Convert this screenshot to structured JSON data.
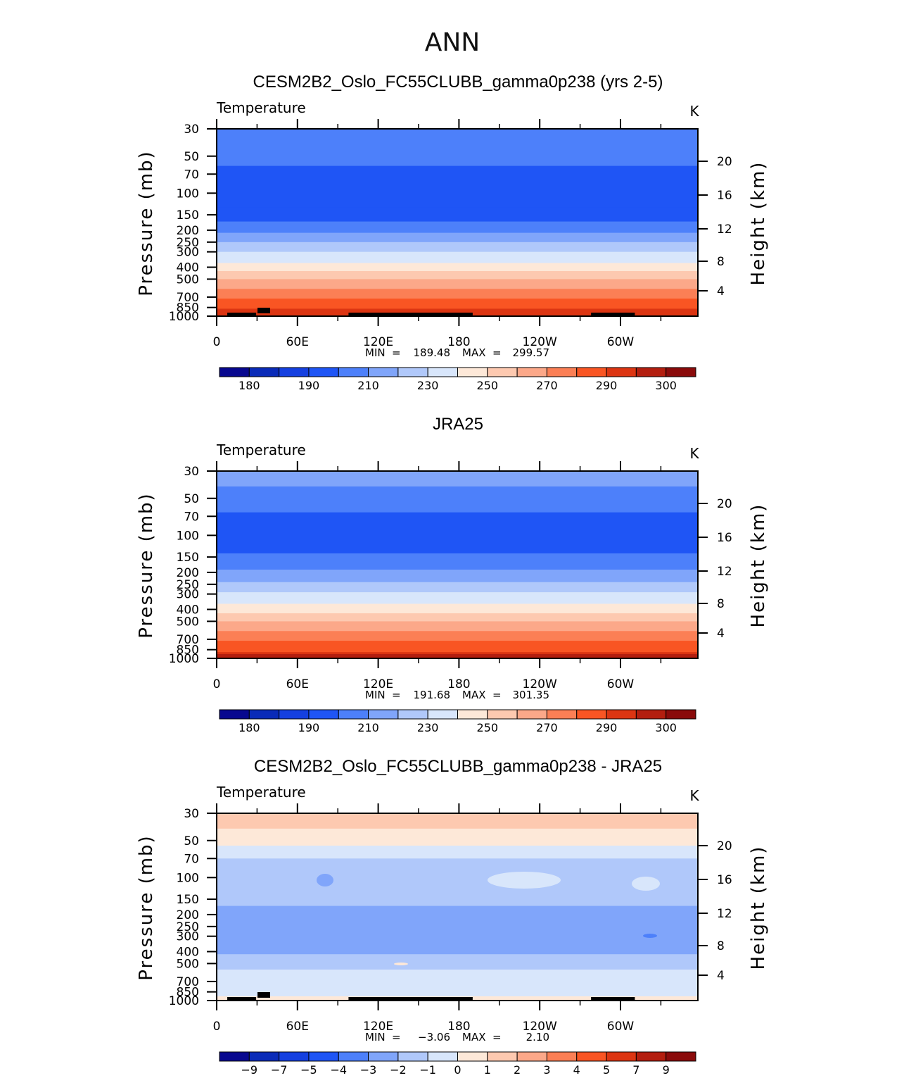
{
  "figure_title": "ANN",
  "colors": {
    "palette": [
      "#08088f",
      "#0a2bb8",
      "#1540e0",
      "#1f55f5",
      "#4d80fa",
      "#80a5fa",
      "#b0c8fa",
      "#d8e6fb",
      "#fde8d8",
      "#fdc9b0",
      "#fca889",
      "#fb7f55",
      "#f95523",
      "#dc3512",
      "#b31e0f",
      "#8a0b0b"
    ],
    "land": "#000000"
  },
  "panels": [
    {
      "title": "CESM2B2_Oslo_FC55CLUBB_gamma0p238 (yrs 2-5)",
      "variable_label": "Temperature",
      "units_label": "K",
      "stats": {
        "min_label": "MIN",
        "min": "189.48",
        "max_label": "MAX",
        "max": "299.57"
      },
      "colorbar_labels": [
        "180",
        "190",
        "210",
        "230",
        "250",
        "270",
        "290",
        "300"
      ]
    },
    {
      "title": "JRA25",
      "variable_label": "Temperature",
      "units_label": "K",
      "stats": {
        "min_label": "MIN",
        "min": "191.68",
        "max_label": "MAX",
        "max": "301.35"
      },
      "colorbar_labels": [
        "180",
        "190",
        "210",
        "230",
        "250",
        "270",
        "290",
        "300"
      ]
    },
    {
      "title": "CESM2B2_Oslo_FC55CLUBB_gamma0p238 - JRA25",
      "variable_label": "Temperature",
      "units_label": "K",
      "stats": {
        "min_label": "MIN",
        "min": "−3.06",
        "max_label": "MAX",
        "max": "2.10"
      },
      "colorbar_labels": [
        "−9",
        "−7",
        "−5",
        "−4",
        "−3",
        "−2",
        "−1",
        "0",
        "1",
        "2",
        "3",
        "4",
        "5",
        "7",
        "9"
      ]
    }
  ],
  "chart_data": [
    {
      "type": "heatmap",
      "title": "CESM2B2_Oslo_FC55CLUBB_gamma0p238 (yrs 2-5)",
      "xlabel": "",
      "ylabel": "Pressure (mb)",
      "y2label": "Height (km)",
      "xticks": [
        "0",
        "60E",
        "120E",
        "180",
        "120W",
        "60W"
      ],
      "yticks": [
        30,
        50,
        70,
        100,
        150,
        200,
        250,
        300,
        400,
        500,
        700,
        850,
        1000
      ],
      "y2ticks": [
        20,
        16,
        12,
        8,
        4
      ],
      "ylim": [
        1000,
        30
      ],
      "levels_by_pressure_mb": [
        {
          "p": 30,
          "class": 4
        },
        {
          "p": 40,
          "class": 4
        },
        {
          "p": 60,
          "class": 3
        },
        {
          "p": 130,
          "class": 3
        },
        {
          "p": 170,
          "class": 4
        },
        {
          "p": 210,
          "class": 5
        },
        {
          "p": 250,
          "class": 6
        },
        {
          "p": 300,
          "class": 7
        },
        {
          "p": 370,
          "class": 8
        },
        {
          "p": 430,
          "class": 9
        },
        {
          "p": 500,
          "class": 10
        },
        {
          "p": 600,
          "class": 11
        },
        {
          "p": 720,
          "class": 12
        },
        {
          "p": 870,
          "class": 13
        },
        {
          "p": 1000,
          "class": 13
        }
      ],
      "colorbar_levels": [
        175,
        180,
        185,
        190,
        200,
        210,
        220,
        230,
        240,
        250,
        260,
        270,
        280,
        290,
        295,
        300,
        305
      ]
    },
    {
      "type": "heatmap",
      "title": "JRA25",
      "xlabel": "",
      "ylabel": "Pressure (mb)",
      "y2label": "Height (km)",
      "xticks": [
        "0",
        "60E",
        "120E",
        "180",
        "120W",
        "60W"
      ],
      "yticks": [
        30,
        50,
        70,
        100,
        150,
        200,
        250,
        300,
        400,
        500,
        700,
        850,
        1000
      ],
      "y2ticks": [
        20,
        16,
        12,
        8,
        4
      ],
      "ylim": [
        1000,
        30
      ],
      "levels_by_pressure_mb": [
        {
          "p": 30,
          "class": 5
        },
        {
          "p": 40,
          "class": 4
        },
        {
          "p": 65,
          "class": 3
        },
        {
          "p": 140,
          "class": 4
        },
        {
          "p": 190,
          "class": 5
        },
        {
          "p": 240,
          "class": 6
        },
        {
          "p": 290,
          "class": 7
        },
        {
          "p": 360,
          "class": 8
        },
        {
          "p": 430,
          "class": 9
        },
        {
          "p": 500,
          "class": 10
        },
        {
          "p": 600,
          "class": 11
        },
        {
          "p": 720,
          "class": 12
        },
        {
          "p": 890,
          "class": 13
        },
        {
          "p": 1000,
          "class": 13
        }
      ],
      "colorbar_levels": [
        175,
        180,
        185,
        190,
        200,
        210,
        220,
        230,
        240,
        250,
        260,
        270,
        280,
        290,
        295,
        300,
        305
      ]
    },
    {
      "type": "heatmap",
      "title": "CESM2B2_Oslo_FC55CLUBB_gamma0p238 - JRA25",
      "xlabel": "",
      "ylabel": "Pressure (mb)",
      "y2label": "Height (km)",
      "xticks": [
        "0",
        "60E",
        "120E",
        "180",
        "120W",
        "60W"
      ],
      "yticks": [
        30,
        50,
        70,
        100,
        150,
        200,
        250,
        300,
        400,
        500,
        700,
        850,
        1000
      ],
      "y2ticks": [
        20,
        16,
        12,
        8,
        4
      ],
      "ylim": [
        1000,
        30
      ],
      "levels_by_pressure_mb": [
        {
          "p": 30,
          "class": 9
        },
        {
          "p": 40,
          "class": 8
        },
        {
          "p": 55,
          "class": 7
        },
        {
          "p": 70,
          "class": 6
        },
        {
          "p": 170,
          "class": 5
        },
        {
          "p": 420,
          "class": 6
        },
        {
          "p": 560,
          "class": 7
        },
        {
          "p": 1000,
          "class": 7
        }
      ],
      "colorbar_levels": [
        -10,
        -9,
        -7,
        -5,
        -4,
        -3,
        -2,
        -1,
        0,
        1,
        2,
        3,
        4,
        5,
        7,
        9,
        10
      ]
    }
  ]
}
